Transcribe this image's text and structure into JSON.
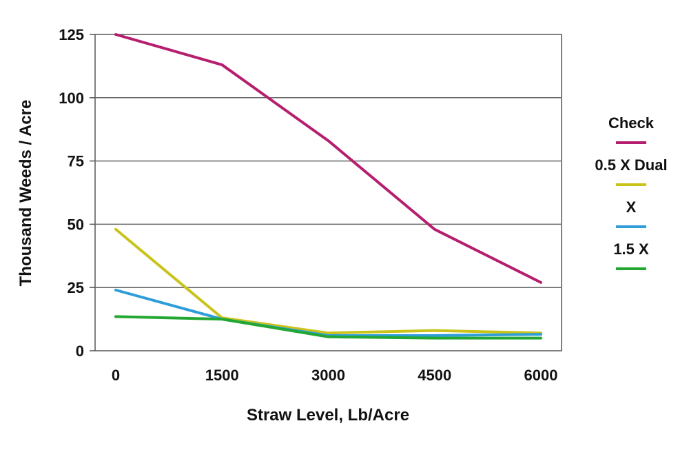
{
  "chart_data": {
    "type": "line",
    "title": "",
    "xlabel": "Straw Level,  Lb/Acre",
    "ylabel": "Thousand Weeds / Acre",
    "x": [
      0,
      1500,
      3000,
      4500,
      6000
    ],
    "x_tick_labels": [
      "0",
      "1500",
      "3000",
      "4500",
      "6000"
    ],
    "xlim": [
      0,
      6000
    ],
    "ylim": [
      0,
      125
    ],
    "y_ticks": [
      0,
      25,
      50,
      75,
      100,
      125
    ],
    "y_tick_labels": [
      "0",
      "25",
      "50",
      "75",
      "100",
      "125"
    ],
    "grid": "horizontal",
    "legend_position": "right",
    "series": [
      {
        "name": "Check",
        "color": "#b51f6e",
        "values": [
          125,
          113,
          83,
          48,
          27
        ]
      },
      {
        "name": "0.5 X Dual",
        "color": "#c9c31a",
        "values": [
          48,
          13,
          7,
          8,
          7
        ]
      },
      {
        "name": "X",
        "color": "#2f9ed8",
        "values": [
          24,
          12.5,
          6,
          6,
          6.5
        ]
      },
      {
        "name": "1.5 X",
        "color": "#22a832",
        "values": [
          13.5,
          12.5,
          5.5,
          5,
          5
        ]
      }
    ]
  }
}
